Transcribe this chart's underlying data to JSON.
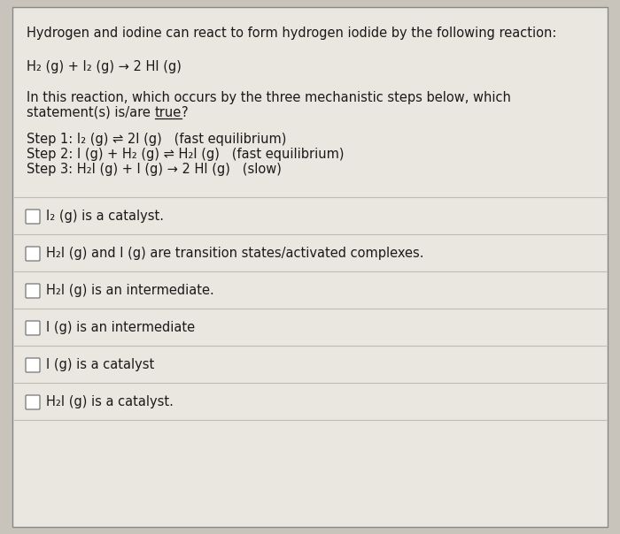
{
  "bg_color": "#c8c4bc",
  "card_color": "#eae7e0",
  "card_color2": "#e0ddd6",
  "border_color": "#888888",
  "divider_color": "#c0bcb4",
  "text_color": "#1a1a1a",
  "title_text": "Hydrogen and iodine can react to form hydrogen iodide by the following reaction:",
  "reaction": "H₂ (g) + I₂ (g) → 2 HI (g)",
  "question_line1": "In this reaction, which occurs by the three mechanistic steps below, which",
  "question_line2_normal": "statement(s) is/are ",
  "question_line2_underline": "true",
  "question_line2_end": "?",
  "step1": "Step 1: I₂ (g) ⇌ 2I (g)   (fast equilibrium)",
  "step2": "Step 2: I (g) + H₂ (g) ⇌ H₂I (g)   (fast equilibrium)",
  "step3": "Step 3: H₂I (g) + I (g) → 2 HI (g)   (slow)",
  "options": [
    "I₂ (g) is a catalyst.",
    "H₂I (g) and I (g) are transition states/activated complexes.",
    "H₂I (g) is an intermediate.",
    "I (g) is an intermediate",
    "I (g) is a catalyst",
    "H₂I (g) is a catalyst."
  ],
  "font_size": 10.5
}
